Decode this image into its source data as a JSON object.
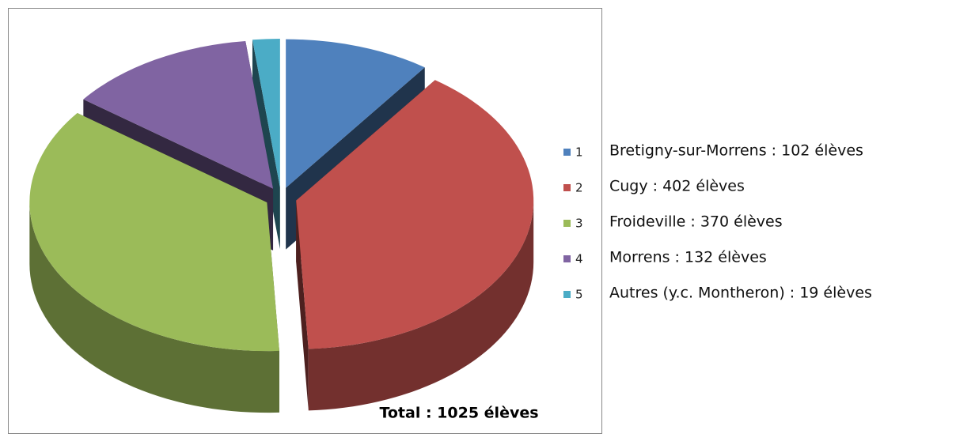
{
  "chart_data": {
    "type": "pie3d",
    "categories": [
      "1",
      "2",
      "3",
      "4",
      "5"
    ],
    "values": [
      102,
      402,
      370,
      132,
      19
    ],
    "colors": [
      "#4f81bd",
      "#c0504d",
      "#9bbb59",
      "#8064a2",
      "#4bacc6"
    ],
    "legend": "right",
    "category_descriptions": [
      "Bretigny-sur-Morrens : 102 élèves",
      "Cugy : 402 élèves",
      "Froideville : 370 élèves",
      "Morrens : 132 élèves",
      "Autres (y.c. Montheron) : 19 élèves"
    ],
    "total_label": "Total : 1025   élèves"
  }
}
